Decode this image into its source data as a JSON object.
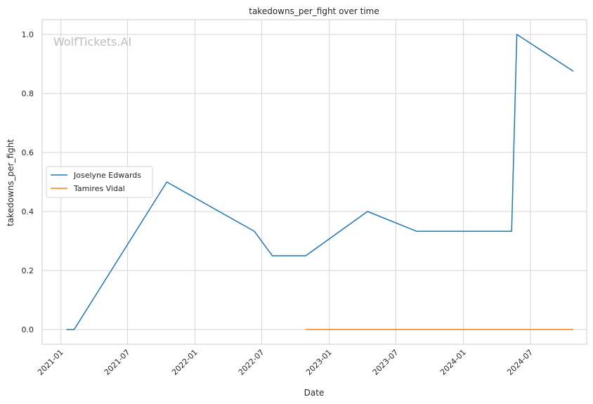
{
  "chart_data": {
    "type": "line",
    "title": "takedowns_per_fight over time",
    "xlabel": "Date",
    "ylabel": "takedowns_per_fight",
    "watermark": "WolfTickets.AI",
    "ylim": [
      -0.05,
      1.05
    ],
    "xlim": [
      "2020-11-11",
      "2024-12-01"
    ],
    "x_ticks": [
      "2021-01",
      "2021-07",
      "2022-01",
      "2022-07",
      "2023-01",
      "2023-07",
      "2024-01",
      "2024-07"
    ],
    "y_ticks": [
      "0.0",
      "0.2",
      "0.4",
      "0.6",
      "0.8",
      "1.0"
    ],
    "grid": true,
    "legend_position": "center-left",
    "series": [
      {
        "name": "Joselyne Edwards",
        "color": "#1f77b4",
        "points": [
          {
            "x": "2021-01-16",
            "y": 0.0
          },
          {
            "x": "2021-02-06",
            "y": 0.0
          },
          {
            "x": "2021-10-16",
            "y": 0.5
          },
          {
            "x": "2022-06-11",
            "y": 0.333
          },
          {
            "x": "2022-07-30",
            "y": 0.25
          },
          {
            "x": "2022-10-29",
            "y": 0.25
          },
          {
            "x": "2023-04-15",
            "y": 0.4
          },
          {
            "x": "2023-08-26",
            "y": 0.333
          },
          {
            "x": "2024-05-11",
            "y": 0.333
          },
          {
            "x": "2024-05-25",
            "y": 1.0
          },
          {
            "x": "2024-10-26",
            "y": 0.875
          }
        ]
      },
      {
        "name": "Tamires Vidal",
        "color": "#ff7f0e",
        "points": [
          {
            "x": "2022-10-29",
            "y": 0.0
          },
          {
            "x": "2024-10-26",
            "y": 0.0
          }
        ]
      }
    ]
  }
}
